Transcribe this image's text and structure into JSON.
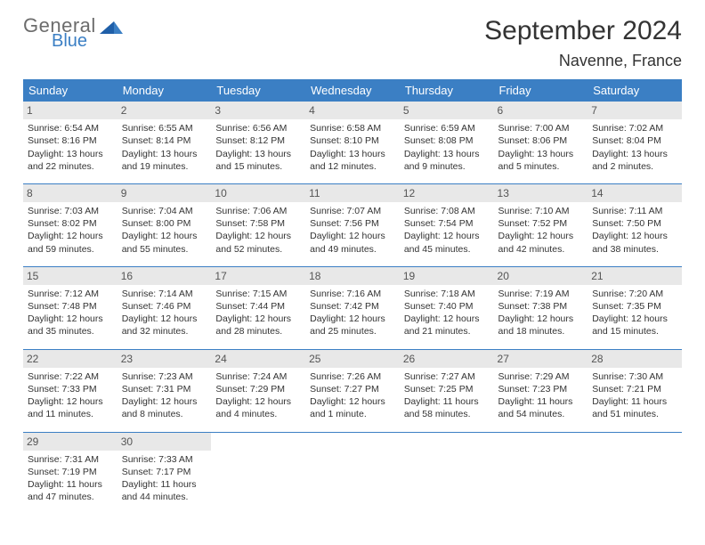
{
  "brand": {
    "line1": "General",
    "line2": "Blue",
    "color_gray": "#6c6c6c",
    "color_blue": "#3b7fc4"
  },
  "title": "September 2024",
  "location": "Navenne, France",
  "header_bg": "#3b7fc4",
  "daynum_bg": "#e8e8e8",
  "weekdays": [
    "Sunday",
    "Monday",
    "Tuesday",
    "Wednesday",
    "Thursday",
    "Friday",
    "Saturday"
  ],
  "days": [
    {
      "n": "1",
      "sr": "6:54 AM",
      "ss": "8:16 PM",
      "dl": "13 hours and 22 minutes."
    },
    {
      "n": "2",
      "sr": "6:55 AM",
      "ss": "8:14 PM",
      "dl": "13 hours and 19 minutes."
    },
    {
      "n": "3",
      "sr": "6:56 AM",
      "ss": "8:12 PM",
      "dl": "13 hours and 15 minutes."
    },
    {
      "n": "4",
      "sr": "6:58 AM",
      "ss": "8:10 PM",
      "dl": "13 hours and 12 minutes."
    },
    {
      "n": "5",
      "sr": "6:59 AM",
      "ss": "8:08 PM",
      "dl": "13 hours and 9 minutes."
    },
    {
      "n": "6",
      "sr": "7:00 AM",
      "ss": "8:06 PM",
      "dl": "13 hours and 5 minutes."
    },
    {
      "n": "7",
      "sr": "7:02 AM",
      "ss": "8:04 PM",
      "dl": "13 hours and 2 minutes."
    },
    {
      "n": "8",
      "sr": "7:03 AM",
      "ss": "8:02 PM",
      "dl": "12 hours and 59 minutes."
    },
    {
      "n": "9",
      "sr": "7:04 AM",
      "ss": "8:00 PM",
      "dl": "12 hours and 55 minutes."
    },
    {
      "n": "10",
      "sr": "7:06 AM",
      "ss": "7:58 PM",
      "dl": "12 hours and 52 minutes."
    },
    {
      "n": "11",
      "sr": "7:07 AM",
      "ss": "7:56 PM",
      "dl": "12 hours and 49 minutes."
    },
    {
      "n": "12",
      "sr": "7:08 AM",
      "ss": "7:54 PM",
      "dl": "12 hours and 45 minutes."
    },
    {
      "n": "13",
      "sr": "7:10 AM",
      "ss": "7:52 PM",
      "dl": "12 hours and 42 minutes."
    },
    {
      "n": "14",
      "sr": "7:11 AM",
      "ss": "7:50 PM",
      "dl": "12 hours and 38 minutes."
    },
    {
      "n": "15",
      "sr": "7:12 AM",
      "ss": "7:48 PM",
      "dl": "12 hours and 35 minutes."
    },
    {
      "n": "16",
      "sr": "7:14 AM",
      "ss": "7:46 PM",
      "dl": "12 hours and 32 minutes."
    },
    {
      "n": "17",
      "sr": "7:15 AM",
      "ss": "7:44 PM",
      "dl": "12 hours and 28 minutes."
    },
    {
      "n": "18",
      "sr": "7:16 AM",
      "ss": "7:42 PM",
      "dl": "12 hours and 25 minutes."
    },
    {
      "n": "19",
      "sr": "7:18 AM",
      "ss": "7:40 PM",
      "dl": "12 hours and 21 minutes."
    },
    {
      "n": "20",
      "sr": "7:19 AM",
      "ss": "7:38 PM",
      "dl": "12 hours and 18 minutes."
    },
    {
      "n": "21",
      "sr": "7:20 AM",
      "ss": "7:35 PM",
      "dl": "12 hours and 15 minutes."
    },
    {
      "n": "22",
      "sr": "7:22 AM",
      "ss": "7:33 PM",
      "dl": "12 hours and 11 minutes."
    },
    {
      "n": "23",
      "sr": "7:23 AM",
      "ss": "7:31 PM",
      "dl": "12 hours and 8 minutes."
    },
    {
      "n": "24",
      "sr": "7:24 AM",
      "ss": "7:29 PM",
      "dl": "12 hours and 4 minutes."
    },
    {
      "n": "25",
      "sr": "7:26 AM",
      "ss": "7:27 PM",
      "dl": "12 hours and 1 minute."
    },
    {
      "n": "26",
      "sr": "7:27 AM",
      "ss": "7:25 PM",
      "dl": "11 hours and 58 minutes."
    },
    {
      "n": "27",
      "sr": "7:29 AM",
      "ss": "7:23 PM",
      "dl": "11 hours and 54 minutes."
    },
    {
      "n": "28",
      "sr": "7:30 AM",
      "ss": "7:21 PM",
      "dl": "11 hours and 51 minutes."
    },
    {
      "n": "29",
      "sr": "7:31 AM",
      "ss": "7:19 PM",
      "dl": "11 hours and 47 minutes."
    },
    {
      "n": "30",
      "sr": "7:33 AM",
      "ss": "7:17 PM",
      "dl": "11 hours and 44 minutes."
    }
  ],
  "labels": {
    "sunrise": "Sunrise:",
    "sunset": "Sunset:",
    "daylight": "Daylight:"
  }
}
